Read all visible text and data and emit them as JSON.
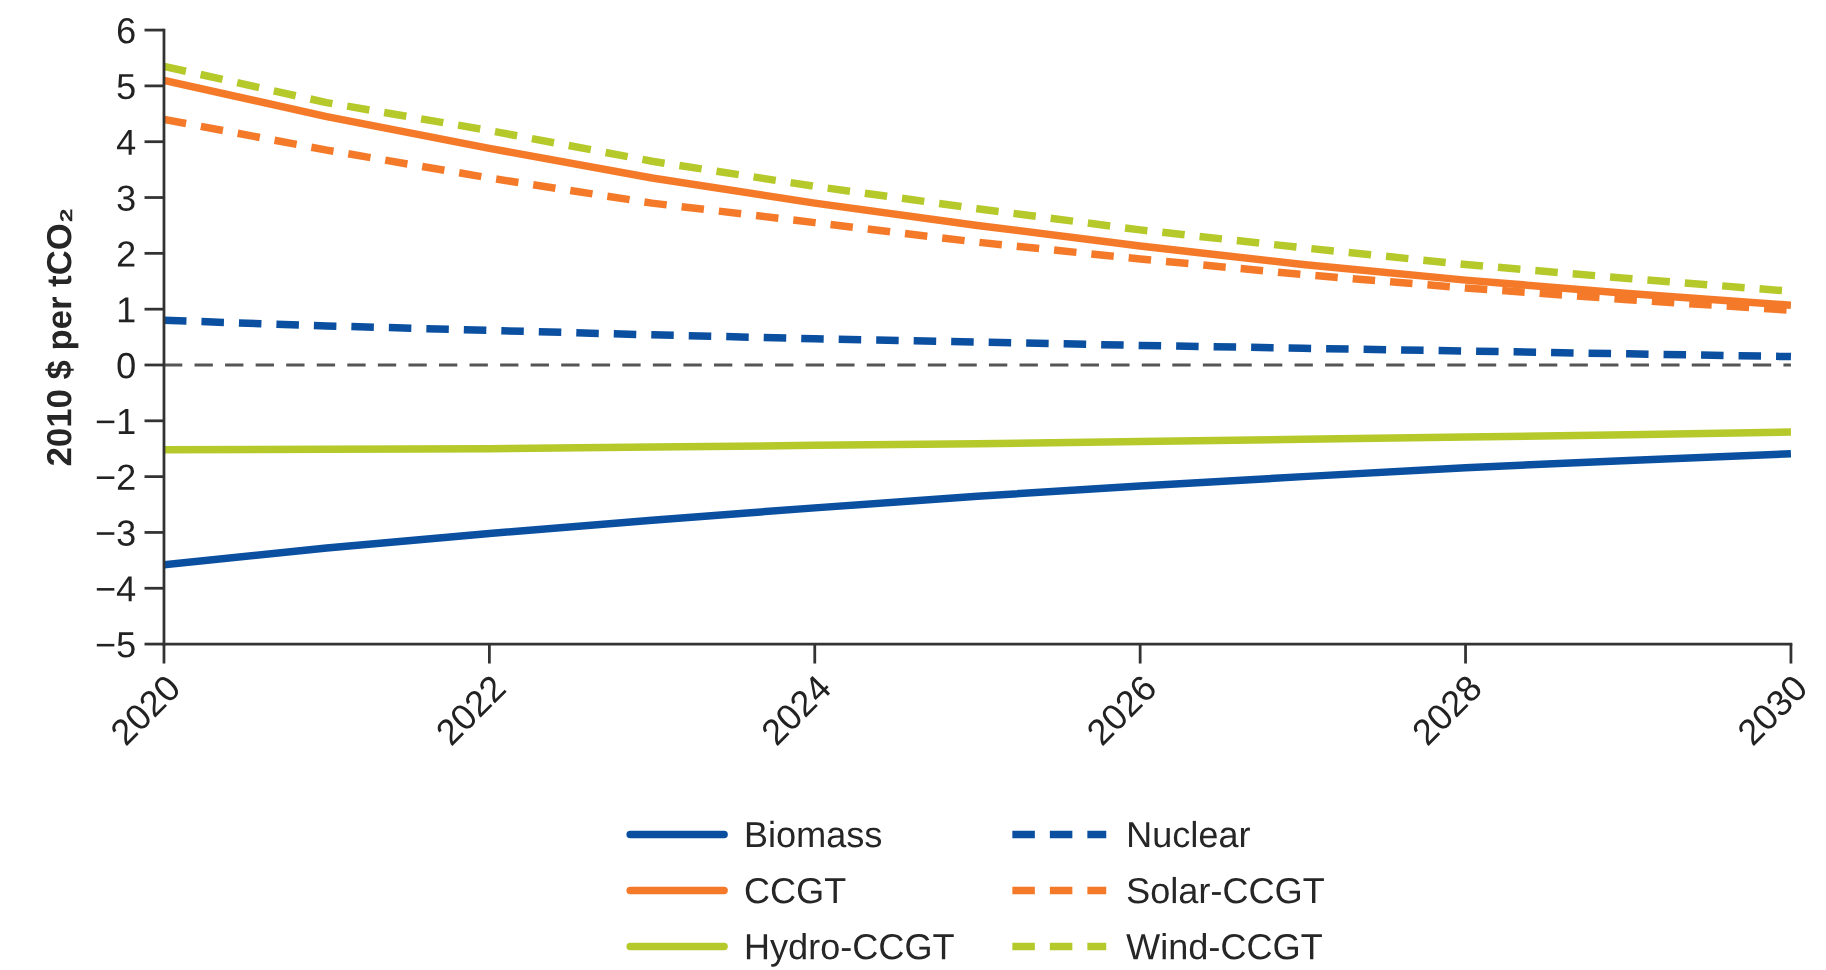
{
  "chart_data": {
    "type": "line",
    "ylabel": "2010 $ per tCO₂",
    "x": [
      2020,
      2021,
      2022,
      2023,
      2024,
      2025,
      2026,
      2027,
      2028,
      2029,
      2030
    ],
    "xlim": [
      2020,
      2030
    ],
    "xticks": [
      2020,
      2022,
      2024,
      2026,
      2028,
      2030
    ],
    "ylim": [
      -5,
      6
    ],
    "yticks": [
      -5,
      -4,
      -3,
      -2,
      -1,
      0,
      1,
      2,
      3,
      4,
      5,
      6
    ],
    "legend": "bottom",
    "ref_lines": [
      {
        "axis": "y",
        "value": 0,
        "color": "#555555",
        "line_style": "dashed"
      }
    ],
    "series": [
      {
        "name": "Biomass",
        "color": "#0a4fa0",
        "line_style": "solid",
        "values": [
          -3.58,
          -3.28,
          -3.02,
          -2.78,
          -2.56,
          -2.35,
          -2.17,
          -2.0,
          -1.84,
          -1.71,
          -1.59
        ]
      },
      {
        "name": "CCGT",
        "color": "#f47a2a",
        "line_style": "solid",
        "values": [
          5.1,
          4.45,
          3.88,
          3.35,
          2.9,
          2.5,
          2.13,
          1.8,
          1.52,
          1.28,
          1.07
        ]
      },
      {
        "name": "Hydro-CCGT",
        "color": "#b5c92a",
        "line_style": "solid",
        "values": [
          -1.52,
          -1.51,
          -1.5,
          -1.47,
          -1.44,
          -1.41,
          -1.37,
          -1.33,
          -1.29,
          -1.25,
          -1.2
        ]
      },
      {
        "name": "Nuclear",
        "color": "#0a4fa0",
        "line_style": "dashed",
        "values": [
          0.8,
          0.7,
          0.62,
          0.54,
          0.47,
          0.41,
          0.35,
          0.3,
          0.25,
          0.2,
          0.15
        ]
      },
      {
        "name": "Solar-CCGT",
        "color": "#f47a2a",
        "line_style": "dashed",
        "values": [
          4.4,
          3.85,
          3.35,
          2.9,
          2.55,
          2.2,
          1.9,
          1.62,
          1.38,
          1.17,
          0.98
        ]
      },
      {
        "name": "Wind-CCGT",
        "color": "#b5c92a",
        "line_style": "dashed",
        "values": [
          5.35,
          4.7,
          4.2,
          3.65,
          3.2,
          2.8,
          2.42,
          2.1,
          1.8,
          1.55,
          1.32
        ]
      }
    ]
  }
}
